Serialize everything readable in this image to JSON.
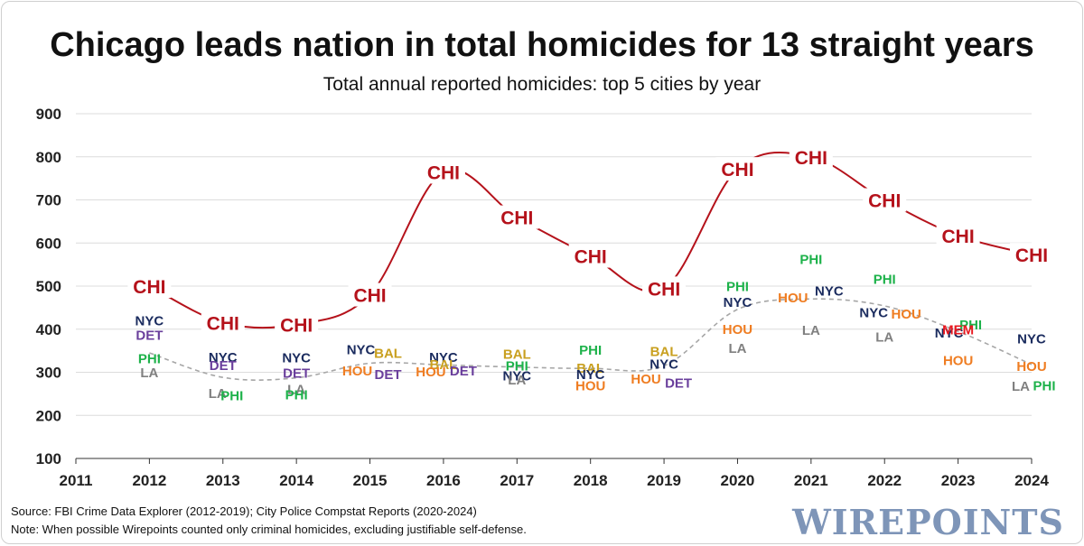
{
  "chart_data": {
    "type": "line",
    "title": "Chicago leads nation in total homicides for 13 straight years",
    "subtitle": "Total annual reported homicides: top 5 cities by year",
    "xlabel": "",
    "ylabel": "",
    "xlim": [
      2011,
      2024
    ],
    "ylim": [
      100,
      900
    ],
    "x_ticks": [
      "2011",
      "2012",
      "2013",
      "2014",
      "2015",
      "2016",
      "2017",
      "2018",
      "2019",
      "2020",
      "2021",
      "2022",
      "2023",
      "2024"
    ],
    "y_ticks": [
      "100",
      "200",
      "300",
      "400",
      "500",
      "600",
      "700",
      "800",
      "900"
    ],
    "grid": true,
    "colors": {
      "CHI": "#b5121b",
      "NYC": "#1a2b5e",
      "DET": "#6a3f9c",
      "PHI": "#1db24a",
      "LA": "#808080",
      "HOU": "#ef7d22",
      "BAL": "#c9a020",
      "MEM": "#e8171f",
      "fifth_line": "#a6a6a6",
      "grid": "#dcdcdc"
    },
    "series": [
      {
        "name": "CHI",
        "x": [
          2012,
          2013,
          2014,
          2015,
          2016,
          2017,
          2018,
          2019,
          2020,
          2021,
          2022,
          2023,
          2024
        ],
        "values": [
          500,
          415,
          411,
          480,
          765,
          660,
          570,
          495,
          772,
          800,
          700,
          617,
          573
        ]
      },
      {
        "name": "5th-place city",
        "x": [
          2012,
          2013,
          2014,
          2015,
          2016,
          2017,
          2018,
          2019,
          2020,
          2021,
          2022,
          2023,
          2024
        ],
        "values": [
          345,
          288,
          287,
          321,
          317,
          312,
          309,
          315,
          446,
          470,
          454,
          395,
          318
        ]
      }
    ],
    "points": [
      {
        "year": 2012,
        "city": "NYC",
        "value": 419
      },
      {
        "year": 2012,
        "city": "DET",
        "value": 386
      },
      {
        "year": 2012,
        "city": "PHI",
        "value": 331
      },
      {
        "year": 2012,
        "city": "LA",
        "value": 299
      },
      {
        "year": 2013,
        "city": "NYC",
        "value": 335
      },
      {
        "year": 2013,
        "city": "DET",
        "value": 316
      },
      {
        "year": 2013,
        "city": "LA",
        "value": 251
      },
      {
        "year": 2013,
        "city": "PHI",
        "value": 246
      },
      {
        "year": 2014,
        "city": "NYC",
        "value": 333
      },
      {
        "year": 2014,
        "city": "DET",
        "value": 298
      },
      {
        "year": 2014,
        "city": "LA",
        "value": 260
      },
      {
        "year": 2014,
        "city": "PHI",
        "value": 248
      },
      {
        "year": 2015,
        "city": "NYC",
        "value": 352
      },
      {
        "year": 2015,
        "city": "BAL",
        "value": 344
      },
      {
        "year": 2015,
        "city": "HOU",
        "value": 303
      },
      {
        "year": 2015,
        "city": "DET",
        "value": 295
      },
      {
        "year": 2016,
        "city": "NYC",
        "value": 335
      },
      {
        "year": 2016,
        "city": "BAL",
        "value": 318
      },
      {
        "year": 2016,
        "city": "HOU",
        "value": 301
      },
      {
        "year": 2016,
        "city": "DET",
        "value": 303
      },
      {
        "year": 2017,
        "city": "BAL",
        "value": 342
      },
      {
        "year": 2017,
        "city": "PHI",
        "value": 315
      },
      {
        "year": 2017,
        "city": "NYC",
        "value": 292
      },
      {
        "year": 2017,
        "city": "LA",
        "value": 282
      },
      {
        "year": 2018,
        "city": "PHI",
        "value": 351
      },
      {
        "year": 2018,
        "city": "BAL",
        "value": 309
      },
      {
        "year": 2018,
        "city": "NYC",
        "value": 295
      },
      {
        "year": 2018,
        "city": "HOU",
        "value": 269
      },
      {
        "year": 2019,
        "city": "BAL",
        "value": 348
      },
      {
        "year": 2019,
        "city": "NYC",
        "value": 319
      },
      {
        "year": 2019,
        "city": "HOU",
        "value": 284
      },
      {
        "year": 2019,
        "city": "DET",
        "value": 275
      },
      {
        "year": 2020,
        "city": "PHI",
        "value": 499
      },
      {
        "year": 2020,
        "city": "NYC",
        "value": 462
      },
      {
        "year": 2020,
        "city": "HOU",
        "value": 400
      },
      {
        "year": 2020,
        "city": "LA",
        "value": 355
      },
      {
        "year": 2021,
        "city": "PHI",
        "value": 562
      },
      {
        "year": 2021,
        "city": "NYC",
        "value": 488
      },
      {
        "year": 2021,
        "city": "HOU",
        "value": 473
      },
      {
        "year": 2021,
        "city": "LA",
        "value": 397
      },
      {
        "year": 2022,
        "city": "PHI",
        "value": 516
      },
      {
        "year": 2022,
        "city": "NYC",
        "value": 438
      },
      {
        "year": 2022,
        "city": "HOU",
        "value": 435
      },
      {
        "year": 2022,
        "city": "LA",
        "value": 382
      },
      {
        "year": 2023,
        "city": "PHI",
        "value": 410
      },
      {
        "year": 2023,
        "city": "NYC",
        "value": 391
      },
      {
        "year": 2023,
        "city": "MEM",
        "value": 398
      },
      {
        "year": 2023,
        "city": "HOU",
        "value": 327
      },
      {
        "year": 2024,
        "city": "NYC",
        "value": 377
      },
      {
        "year": 2024,
        "city": "HOU",
        "value": 314
      },
      {
        "year": 2024,
        "city": "LA",
        "value": 268
      },
      {
        "year": 2024,
        "city": "PHI",
        "value": 269
      }
    ]
  },
  "footer": {
    "source": "Source: FBI Crime Data Explorer (2012-2019); City Police Compstat Reports (2020-2024)",
    "note": "Note: When possible Wirepoints counted only criminal homicides, excluding justifiable self-defense.",
    "brand": "WIREPOINTS"
  }
}
